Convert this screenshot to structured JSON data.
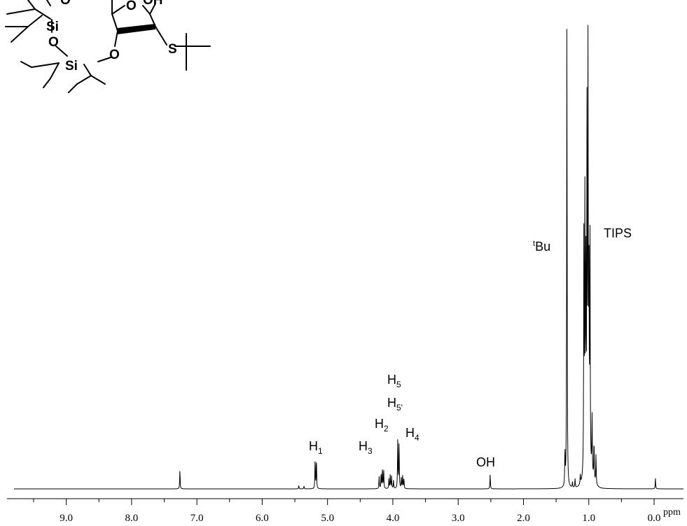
{
  "chart_data": {
    "type": "line",
    "title": "",
    "xlabel": "ppm",
    "ylabel": "",
    "xlim": [
      9.8,
      -0.45
    ],
    "x_reversed": true,
    "grid": false,
    "x_ticks": [
      {
        "value": 9.0,
        "label": "9.0"
      },
      {
        "value": 8.0,
        "label": "8.0"
      },
      {
        "value": 7.0,
        "label": "7.0"
      },
      {
        "value": 6.0,
        "label": "6.0"
      },
      {
        "value": 5.0,
        "label": "5.0"
      },
      {
        "value": 4.0,
        "label": "4.0"
      },
      {
        "value": 3.0,
        "label": "3.0"
      },
      {
        "value": 2.0,
        "label": "2.0"
      },
      {
        "value": 1.0,
        "label": "1.0"
      },
      {
        "value": 0.0,
        "label": "0.0"
      }
    ],
    "peaks": [
      {
        "ppm": 7.26,
        "height": 0.04
      },
      {
        "ppm": 5.44,
        "height": 0.007
      },
      {
        "ppm": 5.36,
        "height": 0.006
      },
      {
        "ppm": 5.19,
        "height": 0.062
      },
      {
        "ppm": 5.17,
        "height": 0.062
      },
      {
        "ppm": 4.21,
        "height": 0.025
      },
      {
        "ppm": 4.18,
        "height": 0.033
      },
      {
        "ppm": 4.16,
        "height": 0.042
      },
      {
        "ppm": 4.14,
        "height": 0.04
      },
      {
        "ppm": 4.06,
        "height": 0.02
      },
      {
        "ppm": 4.04,
        "height": 0.028
      },
      {
        "ppm": 4.02,
        "height": 0.026
      },
      {
        "ppm": 3.99,
        "height": 0.018
      },
      {
        "ppm": 3.925,
        "height": 0.105
      },
      {
        "ppm": 3.905,
        "height": 0.098
      },
      {
        "ppm": 3.87,
        "height": 0.022
      },
      {
        "ppm": 3.85,
        "height": 0.028
      },
      {
        "ppm": 3.83,
        "height": 0.021
      },
      {
        "ppm": 2.51,
        "height": 0.03
      },
      {
        "ppm": 1.365,
        "height": 0.072
      },
      {
        "ppm": 1.335,
        "height": 1.0
      },
      {
        "ppm": 1.25,
        "height": 0.012
      },
      {
        "ppm": 1.21,
        "height": 0.018
      },
      {
        "ppm": 1.13,
        "height": 0.02
      },
      {
        "ppm": 1.075,
        "height": 0.5
      },
      {
        "ppm": 1.06,
        "height": 0.55
      },
      {
        "ppm": 1.045,
        "height": 0.42
      },
      {
        "ppm": 1.028,
        "height": 0.72
      },
      {
        "ppm": 1.012,
        "height": 0.86
      },
      {
        "ppm": 0.998,
        "height": 0.4
      },
      {
        "ppm": 0.982,
        "height": 0.5
      },
      {
        "ppm": 0.95,
        "height": 0.12
      },
      {
        "ppm": 0.92,
        "height": 0.08
      },
      {
        "ppm": 0.89,
        "height": 0.06
      },
      {
        "ppm": -0.02,
        "height": 0.022
      }
    ]
  },
  "annotations": {
    "h1": {
      "base": "H",
      "sub": "1"
    },
    "h3": {
      "base": "H",
      "sub": "3"
    },
    "h2": {
      "base": "H",
      "sub": "2"
    },
    "h4": {
      "base": "H",
      "sub": "4"
    },
    "h5": {
      "base": "H",
      "sub": "5"
    },
    "h5p": {
      "base": "H",
      "sub": "5'"
    },
    "oh": "OH",
    "tbu": {
      "sup": "t",
      "base": "Bu"
    },
    "tips": "TIPS"
  },
  "structure": {
    "atoms": {
      "si1": "Si",
      "si2": "Si",
      "o1": "O",
      "o2": "O",
      "o3": "O",
      "o_ring": "O",
      "o_top": "O",
      "oh_top": "OH",
      "s": "S"
    }
  }
}
